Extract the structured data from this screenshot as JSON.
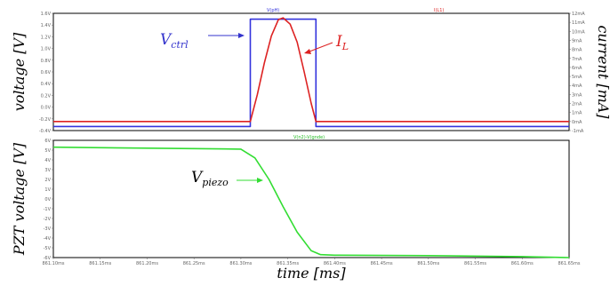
{
  "chart_data": [
    {
      "type": "line",
      "header_left": "V(pH)",
      "header_right": "I(L1)",
      "ylabel_left": "voltage [V]",
      "ylabel_right": "current [mA]",
      "ylim_left": [
        -0.4,
        1.6
      ],
      "ylim_right": [
        -1,
        12
      ],
      "xlim": [
        861.1,
        861.65
      ],
      "y_ticks_left": [
        "1.6V",
        "1.4V",
        "1.2V",
        "1.0V",
        "0.8V",
        "0.6V",
        "0.4V",
        "0.2V",
        "0.0V",
        "-0.2V",
        "-0.4V"
      ],
      "y_ticks_right": [
        "12mA",
        "11mA",
        "10mA",
        "9mA",
        "8mA",
        "7mA",
        "6mA",
        "5mA",
        "4mA",
        "3mA",
        "2mA",
        "1mA",
        "0mA",
        "-1mA"
      ],
      "series": [
        {
          "name": "V(pH)",
          "color": "#3333dd",
          "axis": "left",
          "x": [
            861.1,
            861.31,
            861.31,
            861.38,
            861.38,
            861.65
          ],
          "y": [
            -0.33,
            -0.33,
            1.5,
            1.5,
            -0.33,
            -0.33
          ]
        },
        {
          "name": "I(L1)",
          "color": "#dd2222",
          "axis": "right",
          "x": [
            861.1,
            861.31,
            861.3175,
            861.325,
            861.3325,
            861.34,
            861.345,
            861.3525,
            861.36,
            861.3675,
            861.375,
            861.38,
            861.65
          ],
          "y": [
            0,
            0,
            3.0,
            6.5,
            9.5,
            11.3,
            11.5,
            10.8,
            8.8,
            5.5,
            2.0,
            0,
            0
          ]
        }
      ],
      "annotations": [
        {
          "main": "V",
          "sub": "ctrl",
          "color": "#3333cc"
        },
        {
          "main": "I",
          "sub": "L",
          "color": "#dd2222"
        }
      ]
    },
    {
      "type": "line",
      "header": "V(n2)-V(gnde)",
      "ylabel": "PZT voltage [V]",
      "xlabel": "time [ms]",
      "ylim": [
        -6,
        6
      ],
      "xlim": [
        861.1,
        861.65
      ],
      "y_ticks": [
        "6V",
        "5V",
        "4V",
        "3V",
        "2V",
        "1V",
        "0V",
        "-1V",
        "-2V",
        "-3V",
        "-4V",
        "-5V",
        "-6V"
      ],
      "x_ticks": [
        "861.10ms",
        "861.15ms",
        "861.20ms",
        "861.25ms",
        "861.30ms",
        "861.35ms",
        "861.40ms",
        "861.45ms",
        "861.50ms",
        "861.55ms",
        "861.60ms",
        "861.65ms"
      ],
      "series": [
        {
          "name": "V(n2)-V(gnde)",
          "color": "#33dd33",
          "x": [
            861.1,
            861.2,
            861.3,
            861.315,
            861.33,
            861.345,
            861.36,
            861.375,
            861.385,
            861.4,
            861.5,
            861.6,
            861.65
          ],
          "y": [
            5.3,
            5.2,
            5.1,
            4.2,
            2.0,
            -0.8,
            -3.4,
            -5.3,
            -5.7,
            -5.75,
            -5.8,
            -5.9,
            -6.0
          ]
        }
      ],
      "annotations": [
        {
          "main": "V",
          "sub": "piezo",
          "color": "#000000"
        }
      ]
    }
  ]
}
